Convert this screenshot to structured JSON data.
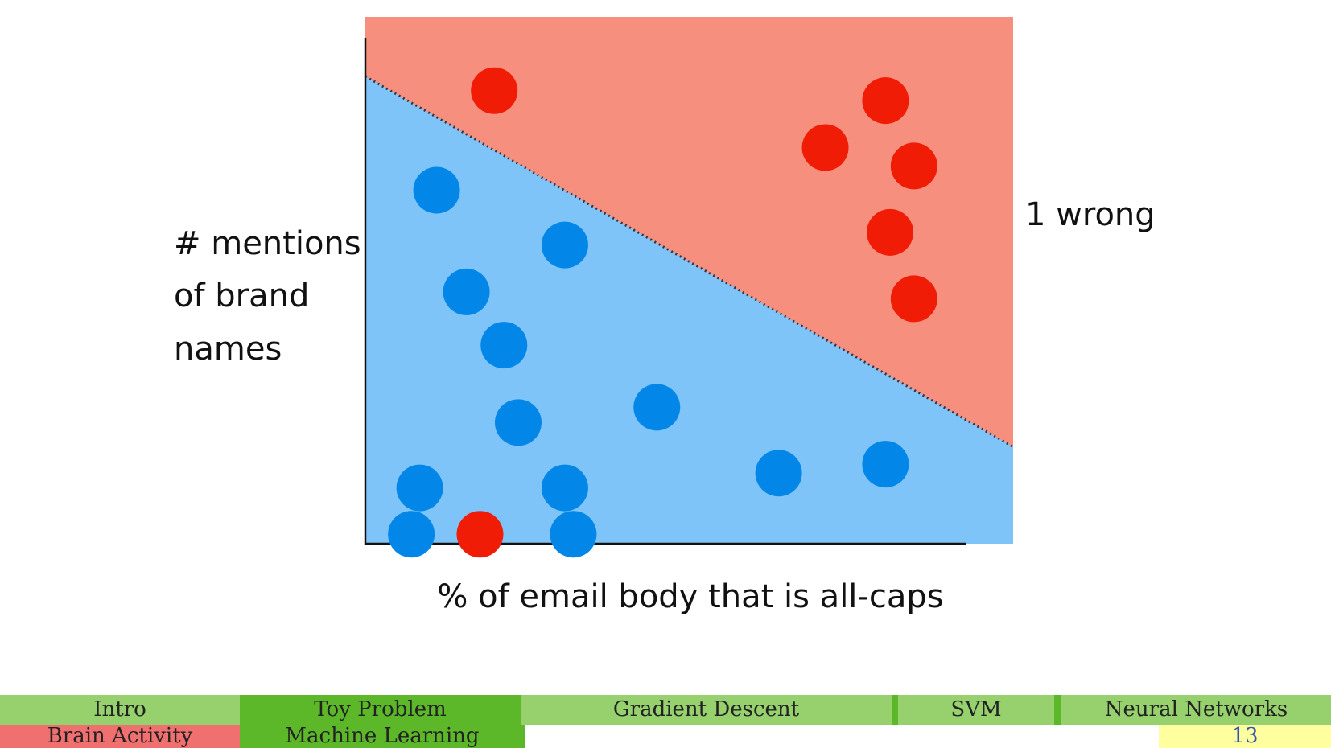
{
  "chart_data": {
    "type": "scatter",
    "xlabel": "% of email body that is all-caps",
    "ylabel": [
      "# mentions",
      "of brand",
      "names"
    ],
    "annotation": "1 wrong",
    "xlim": [
      0,
      100
    ],
    "ylim": [
      0,
      100
    ],
    "regions": {
      "upper_color": "#f78f7e",
      "lower_color": "#7fc4f8"
    },
    "decision_boundary": {
      "x": [
        0,
        100
      ],
      "y": [
        88.7,
        18.4
      ]
    },
    "series": [
      {
        "color": "#f01c06",
        "x": [
          19.9,
          80.3,
          71.0,
          84.7,
          81.0,
          84.7,
          17.7
        ],
        "values": [
          86.0,
          84.1,
          75.2,
          71.7,
          59.1,
          46.5,
          1.8
        ]
      },
      {
        "color": "#0287e8",
        "x": [
          11.0,
          30.8,
          15.6,
          21.4,
          23.6,
          45.0,
          8.4,
          30.8,
          7.1,
          32.1,
          63.8,
          80.3
        ],
        "values": [
          67.1,
          56.7,
          47.8,
          37.7,
          23.0,
          25.9,
          10.6,
          10.6,
          1.8,
          1.8,
          13.4,
          15.1
        ]
      }
    ]
  },
  "footer": {
    "sections": [
      "Intro",
      "Toy Problem",
      "Gradient Descent",
      "SVM",
      "Neural Networks"
    ],
    "subsections": [
      "Brain Activity",
      "Machine Learning"
    ],
    "page_number": 13
  }
}
